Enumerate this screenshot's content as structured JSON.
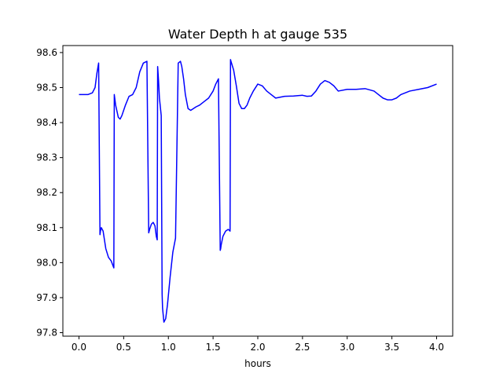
{
  "chart_data": {
    "type": "line",
    "title": "Water Depth h at gauge 535",
    "xlabel": "hours",
    "ylabel": "",
    "xlim": [
      -0.18,
      4.18
    ],
    "ylim": [
      97.79,
      98.62
    ],
    "xticks": [
      0.0,
      0.5,
      1.0,
      1.5,
      2.0,
      2.5,
      3.0,
      3.5,
      4.0
    ],
    "xtick_labels": [
      "0.0",
      "0.5",
      "1.0",
      "1.5",
      "2.0",
      "2.5",
      "3.0",
      "3.5",
      "4.0"
    ],
    "yticks": [
      97.8,
      97.9,
      98.0,
      98.1,
      98.2,
      98.3,
      98.4,
      98.5,
      98.6
    ],
    "ytick_labels": [
      "97.8",
      "97.9",
      "98.0",
      "98.1",
      "98.2",
      "98.3",
      "98.4",
      "98.5",
      "98.6"
    ],
    "grid": false,
    "line_color": "#0000ff",
    "series": [
      {
        "x": [
          0.0,
          0.1,
          0.15,
          0.18,
          0.2,
          0.22,
          0.235,
          0.24,
          0.25,
          0.27,
          0.3,
          0.33,
          0.36,
          0.39,
          0.395,
          0.41,
          0.44,
          0.46,
          0.48,
          0.52,
          0.56,
          0.6,
          0.64,
          0.68,
          0.72,
          0.76,
          0.78,
          0.785,
          0.79,
          0.81,
          0.83,
          0.85,
          0.865,
          0.875,
          0.88,
          0.89,
          0.9,
          0.92,
          0.93,
          0.935,
          0.95,
          0.97,
          0.99,
          1.02,
          1.05,
          1.08,
          1.11,
          1.135,
          1.14,
          1.15,
          1.17,
          1.19,
          1.22,
          1.25,
          1.28,
          1.31,
          1.35,
          1.4,
          1.45,
          1.5,
          1.53,
          1.56,
          1.58,
          1.585,
          1.59,
          1.61,
          1.64,
          1.67,
          1.69,
          1.695,
          1.7,
          1.73,
          1.76,
          1.79,
          1.82,
          1.85,
          1.88,
          1.91,
          1.95,
          2.0,
          2.05,
          2.1,
          2.15,
          2.2,
          2.3,
          2.4,
          2.5,
          2.55,
          2.6,
          2.65,
          2.7,
          2.75,
          2.8,
          2.85,
          2.9,
          3.0,
          3.1,
          3.2,
          3.3,
          3.35,
          3.4,
          3.45,
          3.5,
          3.55,
          3.6,
          3.7,
          3.8,
          3.9,
          4.0
        ],
        "y": [
          98.48,
          98.48,
          98.485,
          98.5,
          98.54,
          98.57,
          98.08,
          98.09,
          98.1,
          98.09,
          98.04,
          98.015,
          98.005,
          97.985,
          98.48,
          98.45,
          98.415,
          98.41,
          98.42,
          98.45,
          98.475,
          98.48,
          98.5,
          98.545,
          98.57,
          98.575,
          98.085,
          98.09,
          98.095,
          98.11,
          98.115,
          98.105,
          98.075,
          98.065,
          98.56,
          98.52,
          98.47,
          98.42,
          97.91,
          97.87,
          97.83,
          97.84,
          97.88,
          97.96,
          98.03,
          98.07,
          98.57,
          98.575,
          98.57,
          98.56,
          98.525,
          98.48,
          98.44,
          98.435,
          98.44,
          98.445,
          98.45,
          98.46,
          98.47,
          98.49,
          98.51,
          98.525,
          98.035,
          98.04,
          98.05,
          98.075,
          98.09,
          98.095,
          98.09,
          98.58,
          98.575,
          98.55,
          98.505,
          98.455,
          98.44,
          98.44,
          98.45,
          98.47,
          98.49,
          98.51,
          98.505,
          98.49,
          98.48,
          98.47,
          98.475,
          98.476,
          98.478,
          98.475,
          98.476,
          98.49,
          98.51,
          98.52,
          98.515,
          98.505,
          98.49,
          98.495,
          98.495,
          98.497,
          98.49,
          98.48,
          98.47,
          98.465,
          98.465,
          98.47,
          98.48,
          98.49,
          98.495,
          98.5,
          98.51
        ]
      }
    ]
  }
}
